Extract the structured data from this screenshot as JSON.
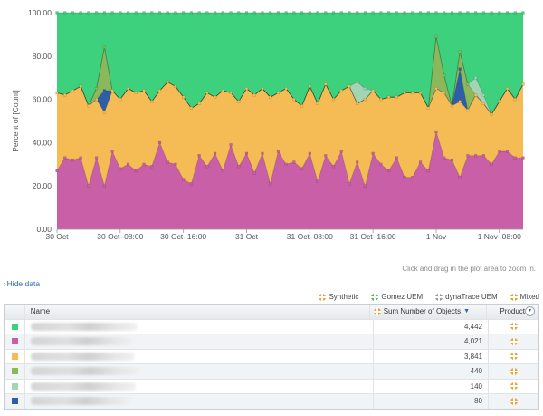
{
  "chart_data": {
    "type": "area",
    "stacked": true,
    "ylabel": "Percent of [Count]",
    "ylim": [
      0,
      100
    ],
    "yticks": [
      "0.00",
      "20.00",
      "40.00",
      "60.00",
      "80.00",
      "100.00"
    ],
    "xticks": [
      {
        "label": "30 Oct",
        "x": 0
      },
      {
        "label": "30 Oct–08:00",
        "x": 8
      },
      {
        "label": "30 Oct–16:00",
        "x": 16
      },
      {
        "label": "31 Oct",
        "x": 24
      },
      {
        "label": "31 Oct–08:00",
        "x": 32
      },
      {
        "label": "31 Oct–16:00",
        "x": 40
      },
      {
        "label": "1 Nov",
        "x": 48
      },
      {
        "label": "1 Nov–08:00",
        "x": 56
      }
    ],
    "x": [
      0,
      1,
      2,
      3,
      4,
      5,
      6,
      7,
      8,
      9,
      10,
      11,
      12,
      13,
      14,
      15,
      16,
      17,
      18,
      19,
      20,
      21,
      22,
      23,
      24,
      25,
      26,
      27,
      28,
      29,
      30,
      31,
      32,
      33,
      34,
      35,
      36,
      37,
      38,
      39,
      40,
      41,
      42,
      43,
      44,
      45,
      46,
      47,
      48,
      49,
      50,
      51,
      52,
      53,
      54,
      55,
      56,
      57,
      58,
      59
    ],
    "series": [
      {
        "color": "#c95fa6",
        "values": [
          27,
          33,
          32,
          33,
          20,
          33,
          20,
          36,
          28,
          30,
          27,
          30,
          29,
          40,
          31,
          30,
          23,
          21,
          34,
          29,
          35,
          27,
          39,
          29,
          35,
          26,
          35,
          21,
          36,
          30,
          31,
          28,
          35,
          22,
          34,
          29,
          36,
          21,
          31,
          20,
          35,
          30,
          27,
          33,
          24,
          24,
          31,
          27,
          45,
          33,
          32,
          24,
          34,
          34,
          34,
          30,
          36,
          36,
          33,
          33
        ]
      },
      {
        "color": "#f5bb55",
        "values": [
          36,
          29,
          32,
          33,
          37,
          27,
          34,
          28,
          32,
          35,
          36,
          34,
          30,
          24,
          37,
          36,
          38,
          35,
          24,
          34,
          26,
          37,
          24,
          30,
          30,
          36,
          30,
          40,
          27,
          35,
          29,
          29,
          31,
          36,
          33,
          31,
          28,
          45,
          27,
          40,
          29,
          30,
          34,
          28,
          39,
          39,
          32,
          29,
          20,
          30,
          25,
          35,
          21,
          28,
          24,
          23,
          23,
          29,
          27,
          34
        ]
      },
      {
        "color": "#2e5ea8",
        "values": [
          0,
          0,
          0,
          0,
          0,
          0,
          10,
          0,
          0,
          0,
          0,
          0,
          0,
          0,
          0,
          0,
          0,
          0,
          0,
          0,
          0,
          0,
          0,
          0,
          0,
          0,
          0,
          0,
          0,
          0,
          0,
          0,
          0,
          0,
          0,
          0,
          0,
          0,
          0,
          0,
          0,
          0,
          0,
          0,
          0,
          0,
          0,
          0,
          0,
          0,
          0,
          15,
          0,
          0,
          0,
          0,
          0,
          0,
          0,
          0
        ]
      },
      {
        "color": "#8ab85a",
        "values": [
          0,
          0,
          0,
          0,
          0,
          5,
          20,
          0,
          0,
          0,
          0,
          0,
          0,
          0,
          0,
          0,
          0,
          0,
          0,
          0,
          0,
          0,
          0,
          0,
          0,
          0,
          0,
          0,
          0,
          0,
          0,
          0,
          0,
          0,
          0,
          0,
          0,
          0,
          0,
          0,
          0,
          0,
          0,
          0,
          0,
          0,
          0,
          0,
          24,
          8,
          0,
          8,
          12,
          0,
          0,
          0,
          0,
          0,
          0,
          0
        ]
      },
      {
        "color": "#a3d4b4",
        "values": [
          0,
          0,
          0,
          0,
          0,
          0,
          0,
          0,
          0,
          0,
          0,
          0,
          0,
          0,
          0,
          0,
          0,
          0,
          0,
          0,
          0,
          0,
          0,
          0,
          0,
          0,
          0,
          0,
          0,
          0,
          0,
          0,
          0,
          0,
          0,
          0,
          0,
          0,
          10,
          5,
          0,
          0,
          0,
          0,
          0,
          0,
          0,
          0,
          0,
          0,
          0,
          0,
          0,
          8,
          4,
          0,
          0,
          0,
          0,
          0
        ]
      },
      {
        "color": "#3dd17e",
        "values": [
          37,
          38,
          36,
          34,
          43,
          35,
          16,
          36,
          40,
          35,
          37,
          36,
          41,
          36,
          32,
          34,
          39,
          44,
          42,
          37,
          39,
          36,
          37,
          41,
          35,
          38,
          35,
          39,
          37,
          35,
          40,
          43,
          34,
          42,
          33,
          40,
          36,
          34,
          32,
          35,
          36,
          40,
          39,
          39,
          37,
          37,
          37,
          44,
          11,
          29,
          43,
          18,
          33,
          30,
          38,
          47,
          41,
          35,
          40,
          33
        ]
      }
    ]
  },
  "hint": "Click and drag in the plot area to zoom in.",
  "hide_data": "Hide data",
  "legend": [
    {
      "label": "Synthetic",
      "icon": "synthetic-icon"
    },
    {
      "label": "Gomez UEM",
      "icon": "gomez-uem-icon"
    },
    {
      "label": "dynaTrace UEM",
      "icon": "dynatrace-uem-icon"
    },
    {
      "label": "Mixed",
      "icon": "mixed-icon"
    }
  ],
  "table": {
    "headers": {
      "name": "Name",
      "sum": "Sum Number of Objects",
      "product": "Product"
    },
    "rows": [
      {
        "color": "#3dd17e",
        "value": "4,442"
      },
      {
        "color": "#c95fa6",
        "value": "4,021"
      },
      {
        "color": "#f5bb55",
        "value": "3,841"
      },
      {
        "color": "#8ab85a",
        "value": "440"
      },
      {
        "color": "#a3d4b4",
        "value": "140"
      },
      {
        "color": "#2e5ea8",
        "value": "80"
      }
    ]
  }
}
